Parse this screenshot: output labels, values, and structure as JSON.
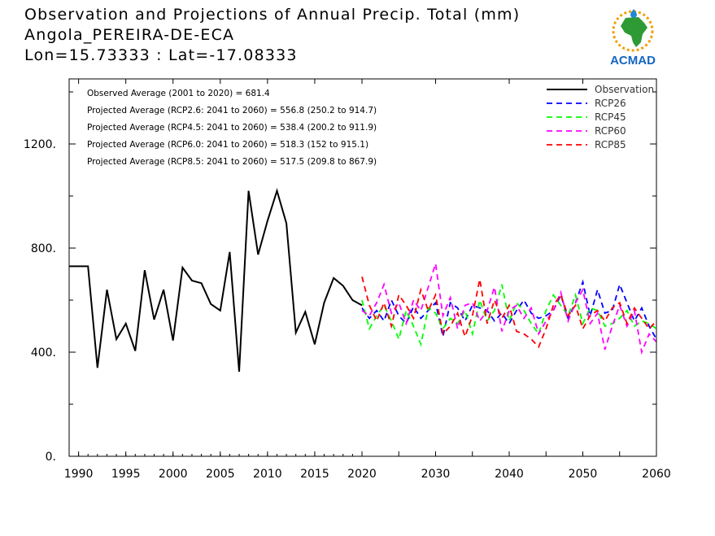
{
  "title": {
    "line1": "Observation and Projections of Annual Precip. Total (mm)",
    "line2": "Angola_PEREIRA-DE-ECA",
    "line3": "Lon=15.73333 : Lat=-17.08333"
  },
  "logo": {
    "text": "ACMAD",
    "icon": "africa-map-logo-icon"
  },
  "annotations": [
    "Observed Average (2001 to 2020) = 681.4",
    "Projected Average (RCP2.6: 2041 to 2060) = 556.8 (250.2 to 914.7)",
    "Projected Average (RCP4.5: 2041 to 2060) = 538.4 (200.2 to 911.9)",
    "Projected Average (RCP6.0: 2041 to 2060) = 518.3 (152 to 915.1)",
    "Projected Average (RCP8.5: 2041 to 2060) = 517.5 (209.8 to 867.9)"
  ],
  "chart_data": {
    "type": "line",
    "xlim": [
      1989,
      2060
    ],
    "ylim": [
      0,
      1450
    ],
    "x_ticks": [
      1990,
      1995,
      2000,
      2005,
      2010,
      2015,
      2020,
      2030,
      2040,
      2050,
      2060
    ],
    "y_ticks": [
      0,
      400,
      800,
      1200
    ],
    "y_tick_labels": [
      "0.",
      "400.",
      "800.",
      "1200."
    ],
    "legend_position": "top-right",
    "series": [
      {
        "name": "Observation",
        "color": "#000000",
        "style": "solid",
        "x": [
          1989,
          1990,
          1991,
          1992,
          1993,
          1994,
          1995,
          1996,
          1997,
          1998,
          1999,
          2000,
          2001,
          2002,
          2003,
          2004,
          2005,
          2006,
          2007,
          2008,
          2009,
          2010,
          2011,
          2012,
          2013,
          2014,
          2015,
          2016,
          2017,
          2018,
          2019,
          2020
        ],
        "y": [
          730,
          730,
          730,
          340,
          640,
          450,
          510,
          405,
          715,
          525,
          640,
          445,
          725,
          675,
          665,
          585,
          560,
          785,
          325,
          1020,
          775,
          905,
          1020,
          895,
          475,
          555,
          430,
          590,
          685,
          655,
          600,
          580
        ]
      },
      {
        "name": "RCP26",
        "color": "#0000ff",
        "style": "dashed",
        "x": [
          2020,
          2021,
          2022,
          2023,
          2024,
          2025,
          2026,
          2027,
          2028,
          2029,
          2030,
          2031,
          2032,
          2033,
          2034,
          2035,
          2036,
          2037,
          2038,
          2039,
          2040,
          2041,
          2042,
          2043,
          2044,
          2045,
          2046,
          2047,
          2048,
          2049,
          2050,
          2051,
          2052,
          2053,
          2054,
          2055,
          2056,
          2057,
          2058,
          2059,
          2060
        ],
        "y": [
          570,
          530,
          560,
          520,
          600,
          540,
          510,
          575,
          530,
          560,
          590,
          460,
          590,
          570,
          520,
          580,
          570,
          560,
          520,
          550,
          510,
          560,
          600,
          550,
          530,
          540,
          560,
          620,
          530,
          590,
          670,
          540,
          640,
          550,
          560,
          660,
          590,
          520,
          570,
          500,
          450
        ]
      },
      {
        "name": "RCP45",
        "color": "#00ff00",
        "style": "dashed",
        "x": [
          2020,
          2021,
          2022,
          2023,
          2024,
          2025,
          2026,
          2027,
          2028,
          2029,
          2030,
          2031,
          2032,
          2033,
          2034,
          2035,
          2036,
          2037,
          2038,
          2039,
          2040,
          2041,
          2042,
          2043,
          2044,
          2045,
          2046,
          2047,
          2048,
          2049,
          2050,
          2051,
          2052,
          2053,
          2054,
          2055,
          2056,
          2057,
          2058,
          2059,
          2060
        ],
        "y": [
          600,
          490,
          540,
          580,
          520,
          450,
          560,
          500,
          430,
          570,
          550,
          490,
          530,
          510,
          560,
          470,
          600,
          520,
          560,
          660,
          520,
          590,
          560,
          510,
          470,
          560,
          620,
          580,
          540,
          620,
          510,
          570,
          560,
          500,
          510,
          530,
          560,
          500,
          520,
          510,
          490
        ]
      },
      {
        "name": "RCP60",
        "color": "#ff00ff",
        "style": "dashed",
        "x": [
          2020,
          2021,
          2022,
          2023,
          2024,
          2025,
          2026,
          2027,
          2028,
          2029,
          2030,
          2031,
          2032,
          2033,
          2034,
          2035,
          2036,
          2037,
          2038,
          2039,
          2040,
          2041,
          2042,
          2043,
          2044,
          2045,
          2046,
          2047,
          2048,
          2049,
          2050,
          2051,
          2052,
          2053,
          2054,
          2055,
          2056,
          2057,
          2058,
          2059,
          2060
        ],
        "y": [
          560,
          540,
          590,
          660,
          550,
          590,
          510,
          600,
          560,
          650,
          740,
          540,
          610,
          490,
          580,
          590,
          520,
          560,
          650,
          480,
          560,
          580,
          530,
          570,
          470,
          520,
          560,
          630,
          520,
          590,
          640,
          510,
          550,
          410,
          500,
          580,
          500,
          560,
          400,
          470,
          440
        ]
      },
      {
        "name": "RCP85",
        "color": "#ff0000",
        "style": "dashed",
        "x": [
          2020,
          2021,
          2022,
          2023,
          2024,
          2025,
          2026,
          2027,
          2028,
          2029,
          2030,
          2031,
          2032,
          2033,
          2034,
          2035,
          2036,
          2037,
          2038,
          2039,
          2040,
          2041,
          2042,
          2043,
          2044,
          2045,
          2046,
          2047,
          2048,
          2049,
          2050,
          2051,
          2052,
          2053,
          2054,
          2055,
          2056,
          2057,
          2058,
          2059,
          2060
        ],
        "y": [
          690,
          580,
          520,
          590,
          500,
          620,
          580,
          530,
          640,
          560,
          620,
          470,
          500,
          550,
          460,
          540,
          680,
          510,
          600,
          530,
          580,
          480,
          470,
          450,
          420,
          490,
          580,
          620,
          540,
          580,
          490,
          540,
          560,
          520,
          570,
          590,
          510,
          570,
          530,
          490,
          520
        ]
      }
    ]
  }
}
